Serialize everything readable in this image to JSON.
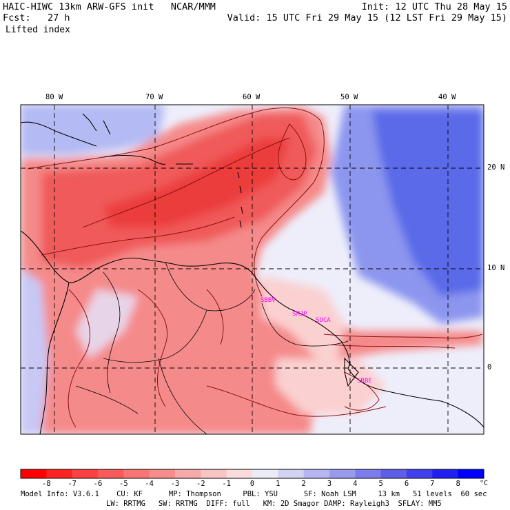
{
  "header": {
    "left_line1": "HAIC-HIWC 13km ARW-GFS init   NCAR/MMM",
    "left_line2": "Fcst:   27 h",
    "left_line3": "Lifted index",
    "right_line1": "Init: 12 UTC Thu 28 May 15",
    "right_line2": "Valid: 15 UTC Fri 29 May 15 (12 LST Fri 29 May 15)"
  },
  "map": {
    "lon_labels": [
      "80 W",
      "70 W",
      "60 W",
      "50 W",
      "40 W"
    ],
    "lat_labels": [
      "20 N",
      "10 N",
      "0"
    ],
    "stations": [
      "SBBV",
      "SMJP",
      "SOCA",
      "SBBE"
    ],
    "colors": {
      "strong_negative": "#f04848",
      "negative": "#f58a8a",
      "weak_negative": "#fbd0d0",
      "positive": "#c8c8f5",
      "strong_positive": "#4a5ae8",
      "contour": "#8b1010",
      "coast": "#000000",
      "station": "#ff00ff"
    }
  },
  "colorbar": {
    "ticks": [
      "-8",
      "-7",
      "-6",
      "-5",
      "-4",
      "-3",
      "-2",
      "-1",
      "0",
      "1",
      "2",
      "3",
      "4",
      "5",
      "6",
      "7",
      "8"
    ],
    "unit": "°C",
    "colors": [
      "#ff0000",
      "#ff2424",
      "#fd4040",
      "#fb5a5a",
      "#f97474",
      "#f78c8c",
      "#f7a8a8",
      "#f9c4c4",
      "#fbdcdc",
      "#ecebf8",
      "#d2d2f5",
      "#b6b6f2",
      "#9a9aef",
      "#7c7cec",
      "#5e5ee9",
      "#4040ef",
      "#2020f2",
      "#0000ff"
    ]
  },
  "footer": {
    "line1": "Model Info: V3.6.1    CU: KF      MP: Thompson     PBL: YSU      SF: Noah LSM     13 km   51 levels  60 sec",
    "line2": "LW: RRTMG   SW: RRTMG  DIFF: full   KM: 2D Smagor DAMP: Rayleigh3  SFLAY: MM5"
  }
}
